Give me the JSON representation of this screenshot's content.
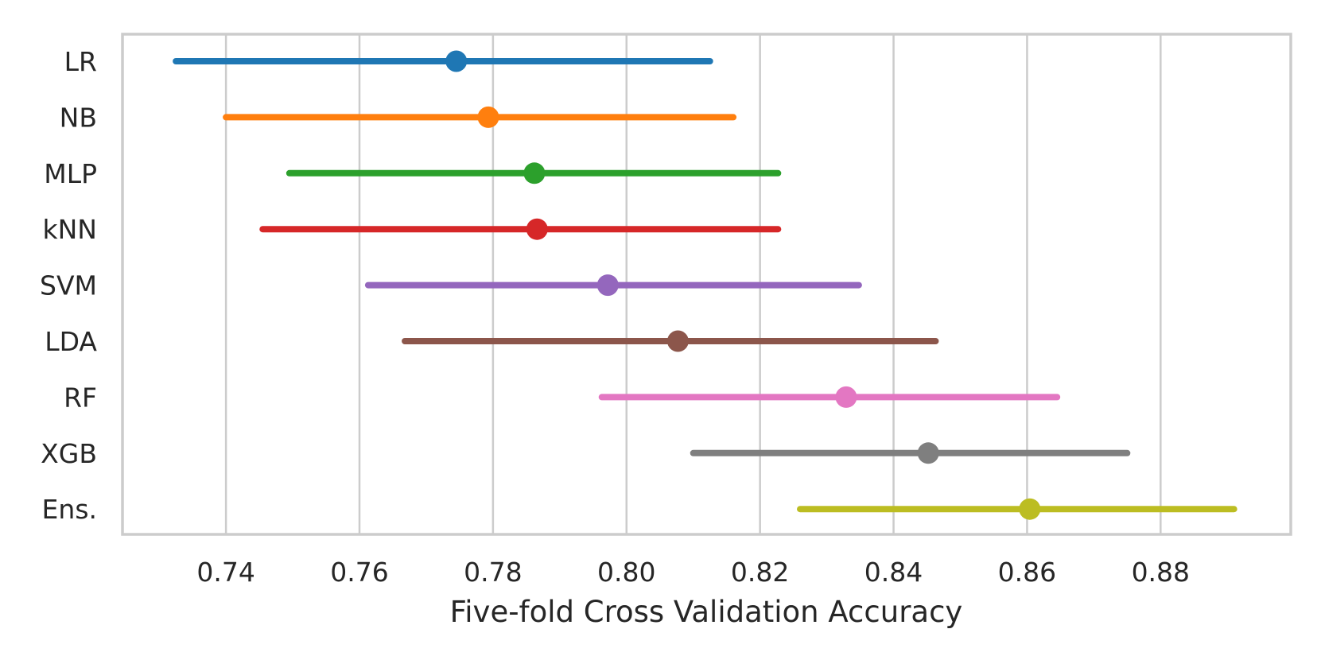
{
  "chart_data": {
    "type": "errorbar",
    "title": "",
    "xlabel": "Five-fold Cross Validation Accuracy",
    "ylabel": "",
    "xlim": [
      0.7245,
      0.8995
    ],
    "xticks": [
      0.74,
      0.76,
      0.78,
      0.8,
      0.82,
      0.84,
      0.86,
      0.88
    ],
    "xtick_labels": [
      "0.74",
      "0.76",
      "0.78",
      "0.80",
      "0.82",
      "0.84",
      "0.86",
      "0.88"
    ],
    "grid": "vertical",
    "series": [
      {
        "name": "LR",
        "mean": 0.7745,
        "low": 0.7325,
        "high": 0.8125,
        "color": "#1f77b4"
      },
      {
        "name": "NB",
        "mean": 0.7793,
        "low": 0.74,
        "high": 0.816,
        "color": "#ff7f0e"
      },
      {
        "name": "MLP",
        "mean": 0.7862,
        "low": 0.7495,
        "high": 0.8227,
        "color": "#2ca02c"
      },
      {
        "name": "kNN",
        "mean": 0.7866,
        "low": 0.7455,
        "high": 0.8227,
        "color": "#d62728"
      },
      {
        "name": "SVM",
        "mean": 0.7972,
        "low": 0.7613,
        "high": 0.8348,
        "color": "#9467bd"
      },
      {
        "name": "LDA",
        "mean": 0.8077,
        "low": 0.7668,
        "high": 0.8463,
        "color": "#8c564b"
      },
      {
        "name": "RF",
        "mean": 0.8329,
        "low": 0.7963,
        "high": 0.8645,
        "color": "#e377c2"
      },
      {
        "name": "XGB",
        "mean": 0.8452,
        "low": 0.81,
        "high": 0.875,
        "color": "#7f7f7f"
      },
      {
        "name": "Ens.",
        "mean": 0.8604,
        "low": 0.826,
        "high": 0.891,
        "color": "#bcbd22"
      }
    ]
  }
}
